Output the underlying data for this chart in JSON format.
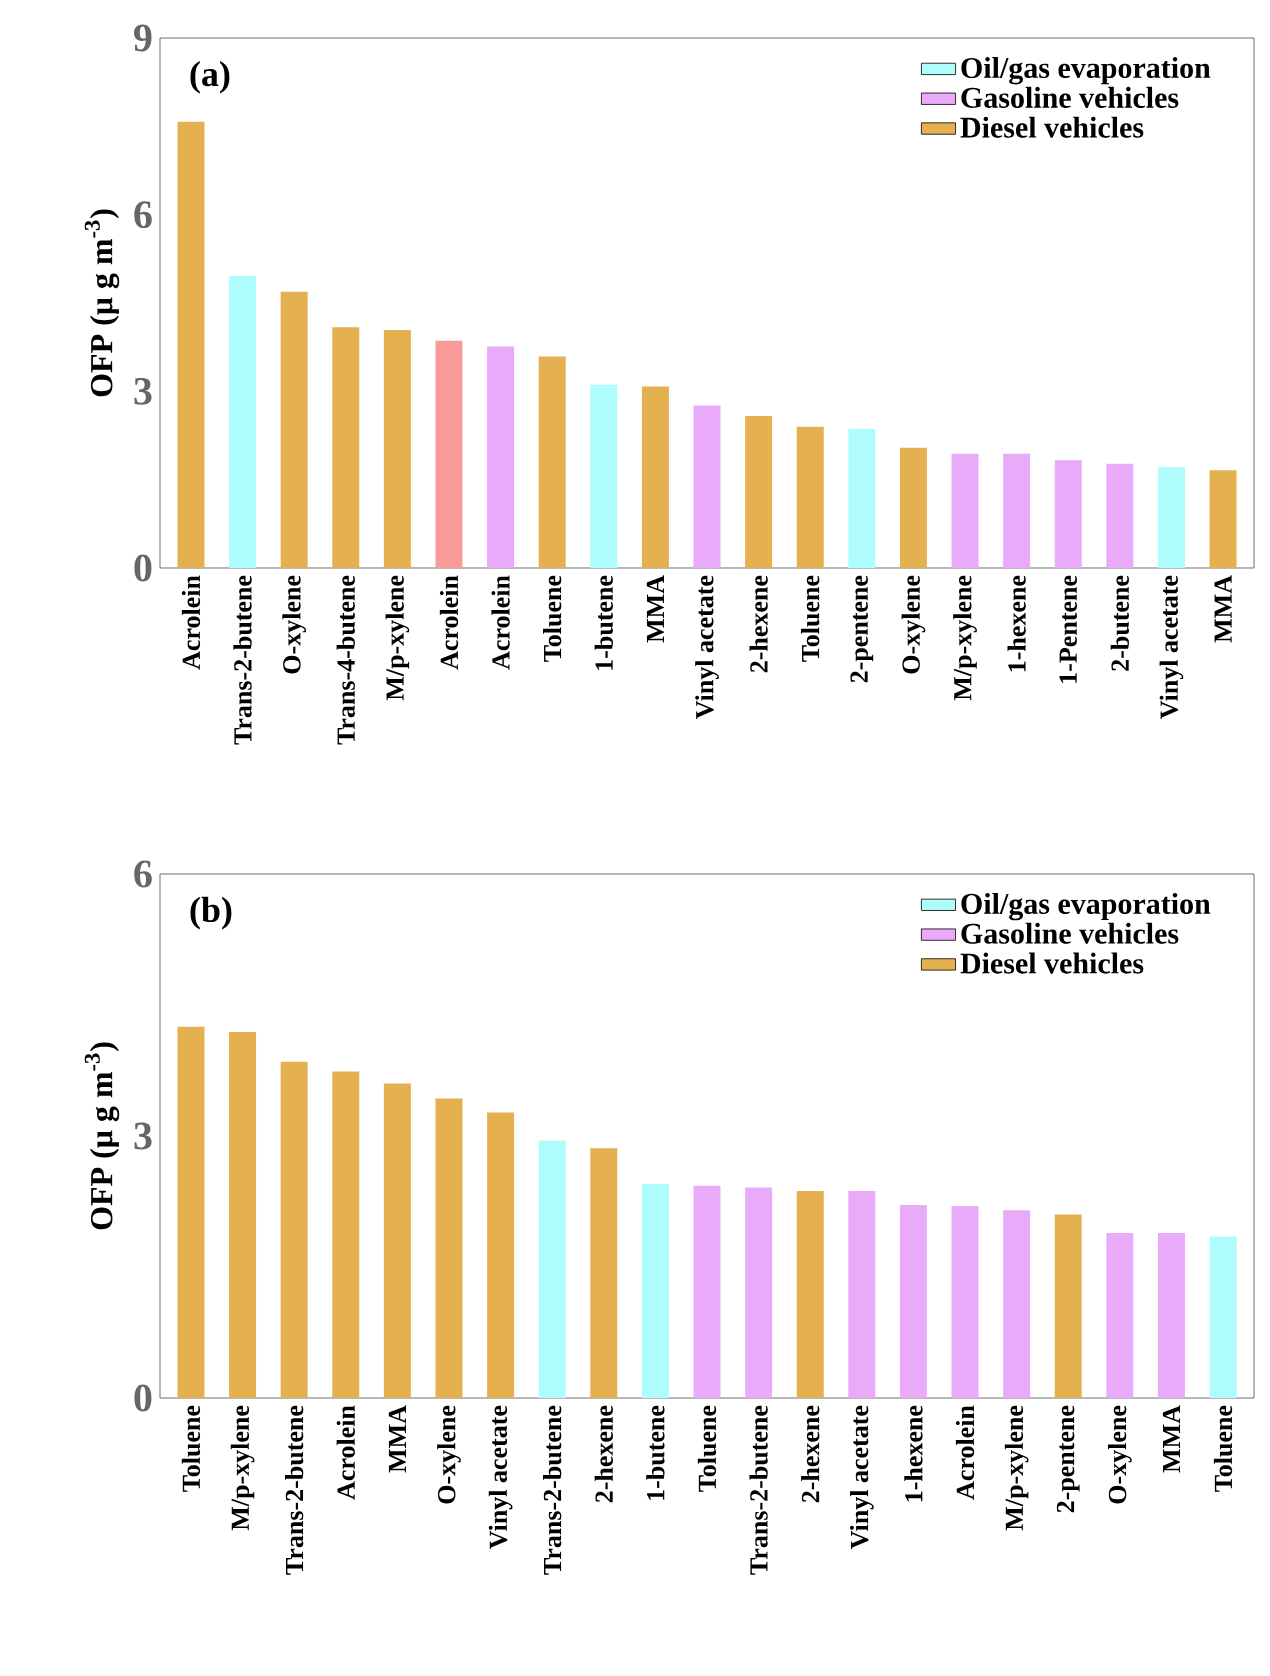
{
  "chart_data": [
    {
      "type": "bar",
      "annotations": [
        "(a)"
      ],
      "ylabel": "OFP (μ g m$^{-3}$)",
      "categories": [
        "Acrolein",
        "Trans-2-butene",
        "O-xylene",
        "Trans-4-butene",
        "M/p-xylene",
        "Acrolein",
        "Acrolein",
        "Toluene",
        "1-butene",
        "MMA",
        "Vinyl acetate",
        "2-hexene",
        "Toluene",
        "2-pentene",
        "O-xylene",
        "M/p-xylene",
        "1-hexene",
        "1-Pentene",
        "2-butene",
        "Vinyl acetate",
        "MMA"
      ],
      "ylim": [
        0,
        9
      ],
      "yticks": [
        0,
        3,
        6,
        9
      ],
      "legend": "top right",
      "series": [
        {
          "name": "Oil/gas evaporation",
          "color": "#aefcfb",
          "values": [
            null,
            4.96,
            null,
            null,
            null,
            null,
            null,
            null,
            3.11,
            null,
            null,
            null,
            null,
            2.36,
            null,
            null,
            null,
            null,
            null,
            1.71,
            null
          ]
        },
        {
          "name": "Gasoline vehicles",
          "color": "#eaaafa",
          "values": [
            null,
            null,
            null,
            null,
            null,
            null,
            3.76,
            null,
            null,
            null,
            2.76,
            null,
            null,
            null,
            null,
            1.94,
            1.94,
            1.83,
            1.77,
            null,
            null
          ]
        },
        {
          "name": "Diesel vehicles",
          "color": "#e5b04f",
          "values": [
            7.58,
            null,
            4.69,
            4.09,
            4.04,
            null,
            null,
            3.59,
            null,
            3.08,
            null,
            2.58,
            2.4,
            null,
            2.04,
            null,
            null,
            null,
            null,
            null,
            1.66
          ]
        },
        {
          "color": "#f99a9a",
          "values": [
            null,
            null,
            null,
            null,
            null,
            3.86,
            null,
            null,
            null,
            null,
            null,
            null,
            null,
            null,
            null,
            null,
            null,
            null,
            null,
            null,
            null
          ]
        }
      ]
    },
    {
      "type": "bar",
      "annotations": [
        "(b)"
      ],
      "ylabel": "OFP (μ g m$^{-3}$)",
      "categories": [
        "Toluene",
        "M/p-xylene",
        "Trans-2-butene",
        "Acrolein",
        "MMA",
        "O-xylene",
        "Vinyl acetate",
        "Trans-2-butene",
        "2-hexene",
        "1-butene",
        "Toluene",
        "Trans-2-butene",
        "2-hexene",
        "Vinyl acetate",
        "1-hexene",
        "Acrolein",
        "M/p-xylene",
        "2-pentene",
        "O-xylene",
        "MMA",
        "Toluene"
      ],
      "ylim": [
        0,
        6
      ],
      "yticks": [
        0,
        3,
        6
      ],
      "legend": "top right",
      "series": [
        {
          "name": "Oil/gas evaporation",
          "color": "#aefcfb",
          "values": [
            null,
            null,
            null,
            null,
            null,
            null,
            null,
            2.95,
            null,
            2.45,
            null,
            null,
            null,
            null,
            null,
            null,
            null,
            null,
            null,
            null,
            1.85
          ]
        },
        {
          "name": "Gasoline vehicles",
          "color": "#eaaafa",
          "values": [
            null,
            null,
            null,
            null,
            null,
            null,
            null,
            null,
            null,
            null,
            2.43,
            2.41,
            null,
            2.37,
            2.21,
            2.2,
            2.15,
            null,
            1.89,
            1.89,
            null
          ]
        },
        {
          "name": "Diesel vehicles",
          "color": "#e5b04f",
          "values": [
            4.25,
            4.19,
            3.85,
            3.74,
            3.6,
            3.43,
            3.27,
            null,
            2.86,
            null,
            null,
            null,
            2.37,
            null,
            null,
            null,
            null,
            2.1,
            null,
            null,
            null
          ]
        }
      ]
    }
  ]
}
